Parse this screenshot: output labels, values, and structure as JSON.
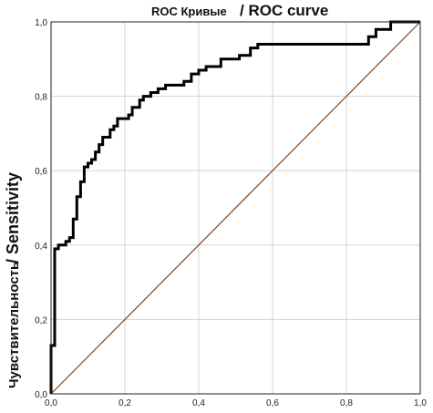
{
  "chart_data": {
    "type": "line",
    "title_ru": "ROC Кривые",
    "title_en": "/ ROC curve",
    "xlabel": "",
    "ylabel_ru": "Чувствительность",
    "ylabel_en": "/ Sensitivity",
    "xlim": [
      0,
      1
    ],
    "ylim": [
      0,
      1
    ],
    "x_ticks": [
      "0,0",
      "0,2",
      "0,4",
      "0,6",
      "0,8",
      "1,0"
    ],
    "y_ticks": [
      "0,0",
      "0,2",
      "0,4",
      "0,6",
      "0,8",
      "1,0"
    ],
    "grid": true,
    "series": [
      {
        "color": "#000000",
        "points": [
          [
            0.0,
            0.0
          ],
          [
            0.0,
            0.13
          ],
          [
            0.01,
            0.13
          ],
          [
            0.01,
            0.39
          ],
          [
            0.02,
            0.39
          ],
          [
            0.02,
            0.4
          ],
          [
            0.04,
            0.4
          ],
          [
            0.04,
            0.41
          ],
          [
            0.05,
            0.41
          ],
          [
            0.05,
            0.42
          ],
          [
            0.06,
            0.42
          ],
          [
            0.06,
            0.47
          ],
          [
            0.07,
            0.47
          ],
          [
            0.07,
            0.53
          ],
          [
            0.08,
            0.53
          ],
          [
            0.08,
            0.57
          ],
          [
            0.09,
            0.57
          ],
          [
            0.09,
            0.61
          ],
          [
            0.1,
            0.61
          ],
          [
            0.1,
            0.62
          ],
          [
            0.11,
            0.62
          ],
          [
            0.11,
            0.63
          ],
          [
            0.12,
            0.63
          ],
          [
            0.12,
            0.65
          ],
          [
            0.13,
            0.65
          ],
          [
            0.13,
            0.67
          ],
          [
            0.14,
            0.67
          ],
          [
            0.14,
            0.69
          ],
          [
            0.16,
            0.69
          ],
          [
            0.16,
            0.71
          ],
          [
            0.17,
            0.71
          ],
          [
            0.17,
            0.72
          ],
          [
            0.18,
            0.72
          ],
          [
            0.18,
            0.74
          ],
          [
            0.21,
            0.74
          ],
          [
            0.21,
            0.75
          ],
          [
            0.22,
            0.75
          ],
          [
            0.22,
            0.77
          ],
          [
            0.24,
            0.77
          ],
          [
            0.24,
            0.79
          ],
          [
            0.25,
            0.79
          ],
          [
            0.25,
            0.8
          ],
          [
            0.27,
            0.8
          ],
          [
            0.27,
            0.81
          ],
          [
            0.29,
            0.81
          ],
          [
            0.29,
            0.82
          ],
          [
            0.31,
            0.82
          ],
          [
            0.31,
            0.83
          ],
          [
            0.36,
            0.83
          ],
          [
            0.36,
            0.84
          ],
          [
            0.38,
            0.84
          ],
          [
            0.38,
            0.86
          ],
          [
            0.4,
            0.86
          ],
          [
            0.4,
            0.87
          ],
          [
            0.42,
            0.87
          ],
          [
            0.42,
            0.88
          ],
          [
            0.46,
            0.88
          ],
          [
            0.46,
            0.9
          ],
          [
            0.51,
            0.9
          ],
          [
            0.51,
            0.91
          ],
          [
            0.54,
            0.91
          ],
          [
            0.54,
            0.93
          ],
          [
            0.56,
            0.93
          ],
          [
            0.56,
            0.94
          ],
          [
            0.86,
            0.94
          ],
          [
            0.86,
            0.96
          ],
          [
            0.88,
            0.96
          ],
          [
            0.88,
            0.98
          ],
          [
            0.92,
            0.98
          ],
          [
            0.92,
            1.0
          ],
          [
            1.0,
            1.0
          ]
        ]
      },
      {
        "color": "#8b4513",
        "points": [
          [
            0.0,
            0.0
          ],
          [
            1.0,
            1.0
          ]
        ]
      }
    ]
  }
}
